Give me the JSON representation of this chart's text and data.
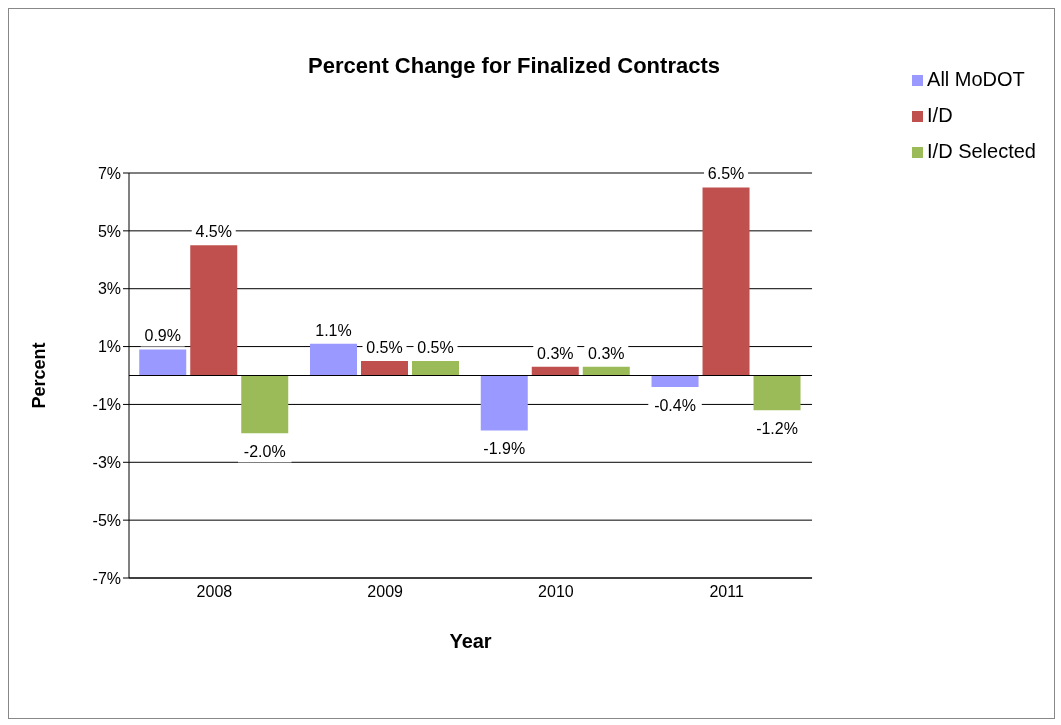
{
  "chart_data": {
    "type": "bar",
    "title": "Percent Change for Finalized Contracts",
    "xlabel": "Year",
    "ylabel": "Percent",
    "categories": [
      "2008",
      "2009",
      "2010",
      "2011"
    ],
    "series": [
      {
        "name": "All MoDOT",
        "color": "#9999ff",
        "values": [
          0.9,
          1.1,
          -1.9,
          -0.4
        ],
        "value_labels": [
          "0.9%",
          "1.1%",
          "-1.9%",
          "-0.4%"
        ]
      },
      {
        "name": "I/D",
        "color": "#c0504d",
        "values": [
          4.5,
          0.5,
          0.3,
          6.5
        ],
        "value_labels": [
          "4.5%",
          "0.5%",
          "0.3%",
          "6.5%"
        ]
      },
      {
        "name": "I/D Selected",
        "color": "#9bbb59",
        "values": [
          -2.0,
          0.5,
          0.3,
          -1.2
        ],
        "value_labels": [
          "-2.0%",
          "0.5%",
          "0.3%",
          "-1.2%"
        ]
      }
    ],
    "ylim": [
      -7,
      7
    ],
    "yticks": [
      {
        "value": -7,
        "label": "-7%"
      },
      {
        "value": -5,
        "label": "-5%"
      },
      {
        "value": -3,
        "label": "-3%"
      },
      {
        "value": -1,
        "label": "-1%"
      },
      {
        "value": 1,
        "label": "1%"
      },
      {
        "value": 3,
        "label": "3%"
      },
      {
        "value": 5,
        "label": "5%"
      },
      {
        "value": 7,
        "label": "7%"
      }
    ],
    "grid": "y",
    "legend": "top right"
  }
}
